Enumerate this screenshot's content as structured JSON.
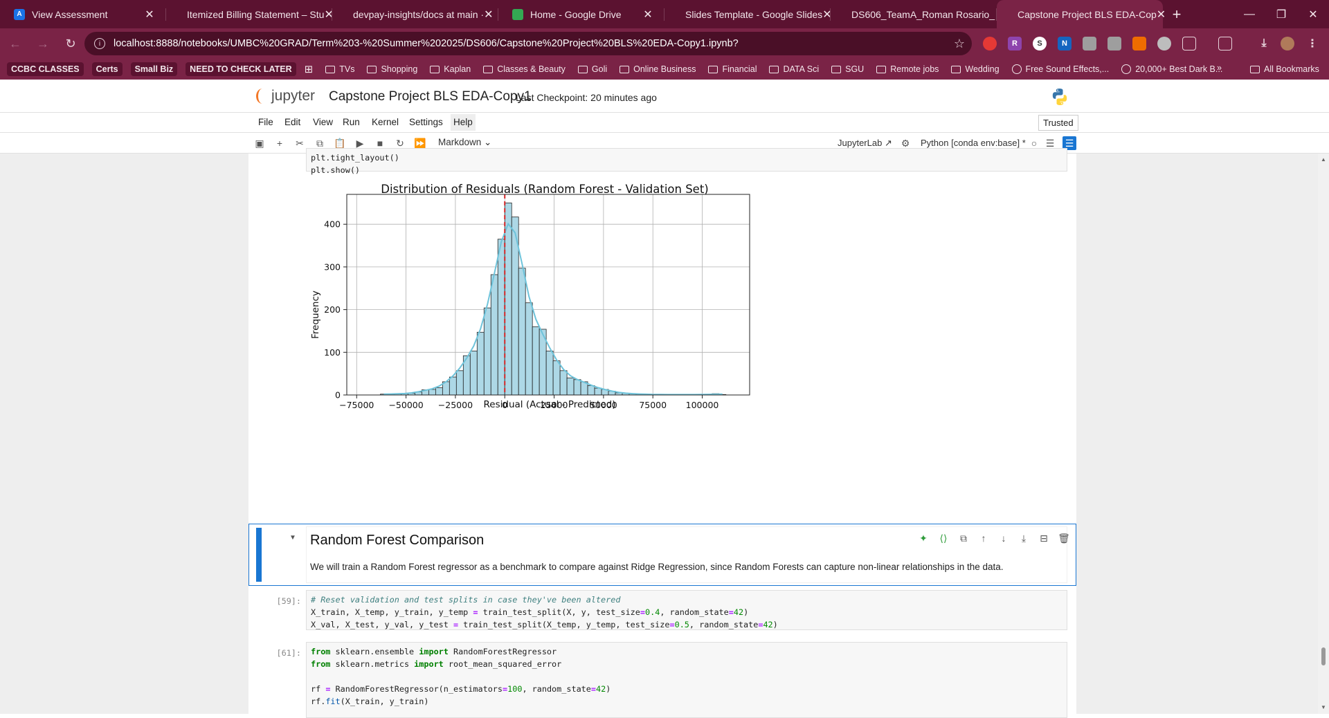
{
  "browser": {
    "tabs": [
      {
        "title": "View Assessment",
        "favicon_letter": "A",
        "favicon_color": "#1a73e8",
        "active": false
      },
      {
        "title": "Itemized Billing Statement – Stu",
        "favicon_letter": "",
        "favicon_color": "#c0392b",
        "active": false
      },
      {
        "title": "devpay-insights/docs at main ·",
        "favicon_letter": "",
        "favicon_color": "#ffffff",
        "active": false
      },
      {
        "title": "Home - Google Drive",
        "favicon_letter": "",
        "favicon_color": "#34a853",
        "active": false
      },
      {
        "title": "Slides Template - Google Slides",
        "favicon_letter": "",
        "favicon_color": "#f4b400",
        "active": false
      },
      {
        "title": "DS606_TeamA_Roman Rosario_",
        "favicon_letter": "",
        "favicon_color": "#f4b400",
        "active": false
      },
      {
        "title": "Capstone Project BLS EDA-Cop",
        "favicon_letter": "",
        "favicon_color": "#f37726",
        "active": true
      }
    ],
    "url": "localhost:8888/notebooks/UMBC%20GRAD/Term%203-%20Summer%202025/DS606/Capstone%20Project%20BLS%20EDA-Copy1.ipynb?",
    "bookmarks": [
      {
        "label": "CCBC CLASSES",
        "kind": "chip"
      },
      {
        "label": "Certs",
        "kind": "chip"
      },
      {
        "label": "Small Biz",
        "kind": "chip"
      },
      {
        "label": "NEED TO CHECK LATER",
        "kind": "chip"
      },
      {
        "label": "TVs",
        "kind": "folder"
      },
      {
        "label": "Shopping",
        "kind": "folder"
      },
      {
        "label": "Kaplan",
        "kind": "folder"
      },
      {
        "label": "Classes & Beauty",
        "kind": "folder"
      },
      {
        "label": "Goli",
        "kind": "folder"
      },
      {
        "label": "Online Business",
        "kind": "folder"
      },
      {
        "label": "Financial",
        "kind": "folder"
      },
      {
        "label": "DATA Sci",
        "kind": "folder"
      },
      {
        "label": "SGU",
        "kind": "folder"
      },
      {
        "label": "Remote jobs",
        "kind": "folder"
      },
      {
        "label": "Wedding",
        "kind": "folder"
      },
      {
        "label": "Free Sound Effects,...",
        "kind": "globe"
      },
      {
        "label": "20,000+ Best Dark B...",
        "kind": "globe"
      }
    ],
    "all_bookmarks_label": "All Bookmarks",
    "overflow_label": "»"
  },
  "jupyter": {
    "logo_text": "jupyter",
    "notebook_title": "Capstone Project BLS EDA-Copy1",
    "checkpoint": "Last Checkpoint: 20 minutes ago",
    "menu": [
      "File",
      "Edit",
      "View",
      "Run",
      "Kernel",
      "Settings",
      "Help"
    ],
    "trusted": "Trusted",
    "cell_type": "Markdown",
    "jupyterlab_link": "JupyterLab",
    "kernel": "Python [conda env:base] *"
  },
  "cells": {
    "top_code_lines": [
      "plt.tight_layout()",
      "plt.show()"
    ],
    "markdown": {
      "title": "Random Forest Comparison",
      "text": "We will train a Random Forest regressor as a benchmark to compare against Ridge Regression, since Random Forests can capture non-linear relationships in the data."
    },
    "cell59_prompt": "[59]:",
    "cell61_prompt": "[61]:"
  },
  "chart_data": {
    "type": "bar",
    "title": "Distribution of Residuals (Random Forest - Validation Set)",
    "xlabel": "Residual (Actual - Predicted)",
    "ylabel": "Frequency",
    "xlim": [
      -80000,
      124000
    ],
    "ylim": [
      0,
      470
    ],
    "xticks": [
      -75000,
      -50000,
      -25000,
      0,
      25000,
      50000,
      75000,
      100000
    ],
    "xtick_labels": [
      "−75000",
      "−50000",
      "−25000",
      "0",
      "25000",
      "50000",
      "75000",
      "100000"
    ],
    "yticks": [
      0,
      100,
      200,
      300,
      400
    ],
    "bin_width": 3500,
    "bin_starts": [
      -63000,
      -59500,
      -56000,
      -52500,
      -49000,
      -45500,
      -42000,
      -38500,
      -35000,
      -31500,
      -28000,
      -24500,
      -21000,
      -17500,
      -14000,
      -10500,
      -7000,
      -3500,
      0,
      3500,
      7000,
      10500,
      14000,
      17500,
      21000,
      24500,
      28000,
      31500,
      35000,
      38500,
      42000,
      45500,
      49000,
      52500,
      56000,
      59500,
      63000,
      66500,
      70000,
      73500,
      77000,
      80500,
      84000,
      87500,
      91000,
      94500,
      98000,
      101500,
      105000,
      108500
    ],
    "counts": [
      2,
      2,
      3,
      3,
      4,
      7,
      12,
      13,
      17,
      31,
      42,
      57,
      92,
      103,
      147,
      204,
      282,
      365,
      450,
      417,
      297,
      216,
      160,
      154,
      103,
      80,
      57,
      40,
      36,
      31,
      22,
      16,
      13,
      9,
      5,
      4,
      3,
      2,
      2,
      1,
      1,
      1,
      1,
      1,
      1,
      1,
      1,
      1,
      3,
      1
    ],
    "kde_color": "#6ec3da",
    "bar_color": "#add8e6",
    "mean_line": {
      "x": 0,
      "color": "#d62728",
      "style": "dashed"
    },
    "grid": true
  }
}
